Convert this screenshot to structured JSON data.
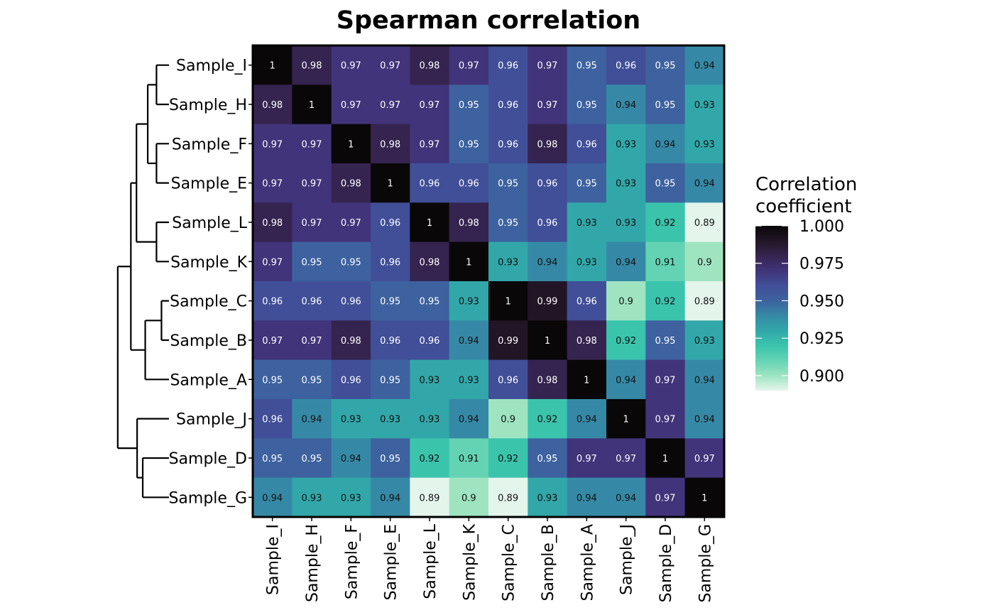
{
  "chart_data": {
    "type": "heatmap",
    "title": "Spearman correlation",
    "rows": [
      "Sample_I",
      "Sample_H",
      "Sample_F",
      "Sample_E",
      "Sample_L",
      "Sample_K",
      "Sample_C",
      "Sample_B",
      "Sample_A",
      "Sample_J",
      "Sample_D",
      "Sample_G"
    ],
    "columns": [
      "Sample_I",
      "Sample_H",
      "Sample_F",
      "Sample_E",
      "Sample_L",
      "Sample_K",
      "Sample_C",
      "Sample_B",
      "Sample_A",
      "Sample_J",
      "Sample_D",
      "Sample_G"
    ],
    "values": [
      [
        1,
        0.98,
        0.97,
        0.97,
        0.98,
        0.97,
        0.96,
        0.97,
        0.95,
        0.96,
        0.95,
        0.94
      ],
      [
        0.98,
        1,
        0.97,
        0.97,
        0.97,
        0.95,
        0.96,
        0.97,
        0.95,
        0.94,
        0.95,
        0.93
      ],
      [
        0.97,
        0.97,
        1,
        0.98,
        0.97,
        0.95,
        0.96,
        0.98,
        0.96,
        0.93,
        0.94,
        0.93
      ],
      [
        0.97,
        0.97,
        0.98,
        1,
        0.96,
        0.96,
        0.95,
        0.96,
        0.95,
        0.93,
        0.95,
        0.94
      ],
      [
        0.98,
        0.97,
        0.97,
        0.96,
        1,
        0.98,
        0.95,
        0.96,
        0.93,
        0.93,
        0.92,
        0.89
      ],
      [
        0.97,
        0.95,
        0.95,
        0.96,
        0.98,
        1,
        0.93,
        0.94,
        0.93,
        0.94,
        0.91,
        0.9
      ],
      [
        0.96,
        0.96,
        0.96,
        0.95,
        0.95,
        0.93,
        1,
        0.99,
        0.96,
        0.9,
        0.92,
        0.89
      ],
      [
        0.97,
        0.97,
        0.98,
        0.96,
        0.96,
        0.94,
        0.99,
        1,
        0.98,
        0.92,
        0.95,
        0.93
      ],
      [
        0.95,
        0.95,
        0.96,
        0.95,
        0.93,
        0.93,
        0.96,
        0.98,
        1,
        0.94,
        0.97,
        0.94
      ],
      [
        0.96,
        0.94,
        0.93,
        0.93,
        0.93,
        0.94,
        0.9,
        0.92,
        0.94,
        1,
        0.97,
        0.94
      ],
      [
        0.95,
        0.95,
        0.94,
        0.95,
        0.92,
        0.91,
        0.92,
        0.95,
        0.97,
        0.97,
        1,
        0.97
      ],
      [
        0.94,
        0.93,
        0.93,
        0.94,
        0.89,
        0.9,
        0.89,
        0.93,
        0.94,
        0.94,
        0.97,
        1
      ]
    ],
    "dendrogram": {
      "position": "left",
      "order": [
        "Sample_I",
        "Sample_H",
        "Sample_F",
        "Sample_E",
        "Sample_L",
        "Sample_K",
        "Sample_C",
        "Sample_B",
        "Sample_A",
        "Sample_J",
        "Sample_D",
        "Sample_G"
      ],
      "merges": [
        {
          "a": "Sample_I",
          "b": "Sample_H",
          "height": 0.02
        },
        {
          "a": "Sample_F",
          "b": "Sample_E",
          "height": 0.02
        },
        {
          "a": "Sample_L",
          "b": "Sample_K",
          "height": 0.02
        },
        {
          "a": "Sample_C",
          "b": "Sample_B",
          "height": 0.012
        },
        {
          "a": "Sample_D",
          "b": "Sample_G",
          "height": 0.042
        },
        {
          "a": "IH",
          "b": "FE",
          "height": 0.034
        },
        {
          "a": "IHFE",
          "b": "LK",
          "height": 0.052
        },
        {
          "a": "CB",
          "b": "Sample_A",
          "height": 0.038
        },
        {
          "a": "Sample_J",
          "b": "DG",
          "height": 0.051
        },
        {
          "a": "IHFELK",
          "b": "CBA",
          "height": 0.061
        },
        {
          "a": "top",
          "b": "JDG",
          "height": 0.082
        }
      ]
    },
    "legend": {
      "title": "Correlation coefficient",
      "title_lines": [
        "Correlation",
        "coefficient"
      ],
      "ticks": [
        "1.000",
        "0.975",
        "0.950",
        "0.925",
        "0.900"
      ],
      "tick_values": [
        1.0,
        0.975,
        0.95,
        0.925,
        0.9
      ],
      "range": [
        0.89,
        1.0
      ],
      "placement": "right"
    },
    "colorscale": [
      {
        "value": 0.89,
        "color": "#e4f5ec"
      },
      {
        "value": 0.9,
        "color": "#9ee4c1"
      },
      {
        "value": 0.91,
        "color": "#64d3b3"
      },
      {
        "value": 0.92,
        "color": "#3ac4ac"
      },
      {
        "value": 0.93,
        "color": "#32a7a9"
      },
      {
        "value": 0.94,
        "color": "#3689a6"
      },
      {
        "value": 0.95,
        "color": "#3d629f"
      },
      {
        "value": 0.96,
        "color": "#414f98"
      },
      {
        "value": 0.97,
        "color": "#41347a"
      },
      {
        "value": 0.98,
        "color": "#35244f"
      },
      {
        "value": 0.99,
        "color": "#221626"
      },
      {
        "value": 1.0,
        "color": "#0a0708"
      }
    ]
  }
}
